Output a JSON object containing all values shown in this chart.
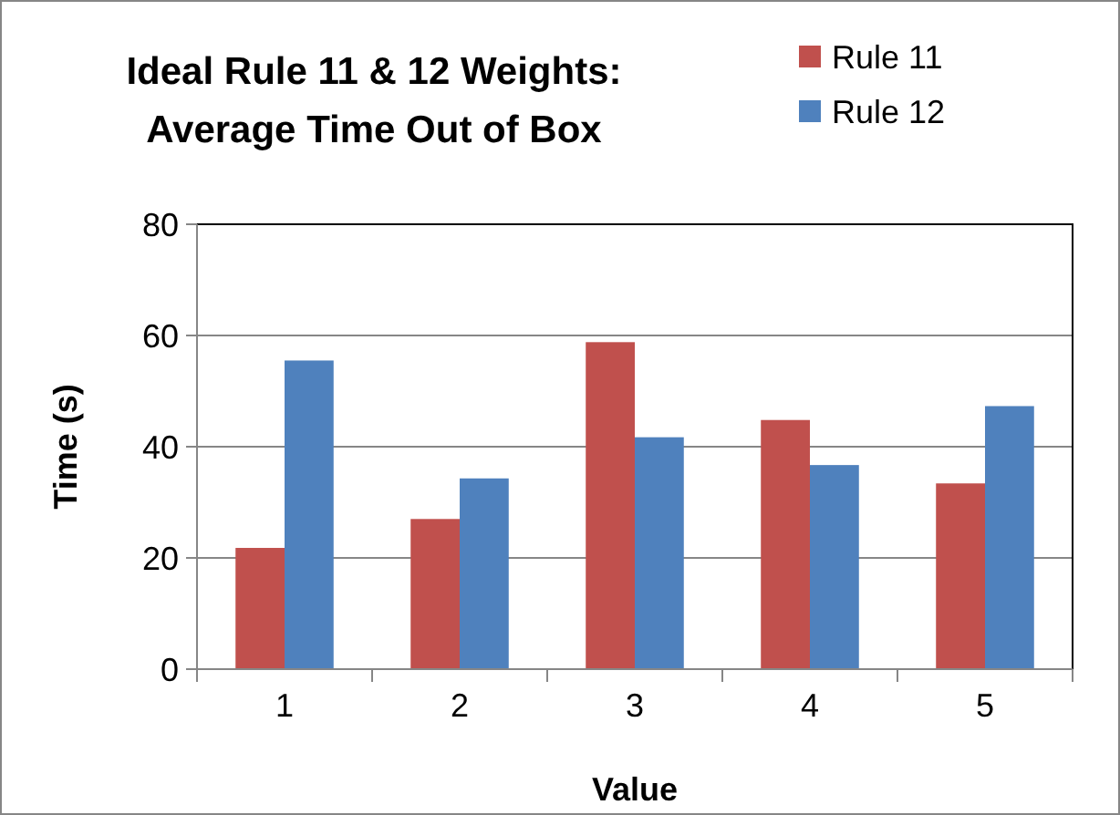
{
  "chart_data": {
    "type": "bar",
    "title": "Ideal Rule 11 & 12 Weights: Average Time Out of Box",
    "xlabel": "Value",
    "ylabel": "Time (s)",
    "categories": [
      "1",
      "2",
      "3",
      "4",
      "5"
    ],
    "series": [
      {
        "name": "Rule 11",
        "color": "#c0504d",
        "values": [
          21.8,
          27.0,
          58.8,
          44.8,
          33.4
        ]
      },
      {
        "name": "Rule 12",
        "color": "#4f81bd",
        "values": [
          55.5,
          34.3,
          41.7,
          36.7,
          47.3
        ]
      }
    ],
    "ylim": [
      0,
      80
    ],
    "yticks": [
      0,
      20,
      40,
      60,
      80
    ],
    "grid": "y",
    "legend": "top right"
  }
}
